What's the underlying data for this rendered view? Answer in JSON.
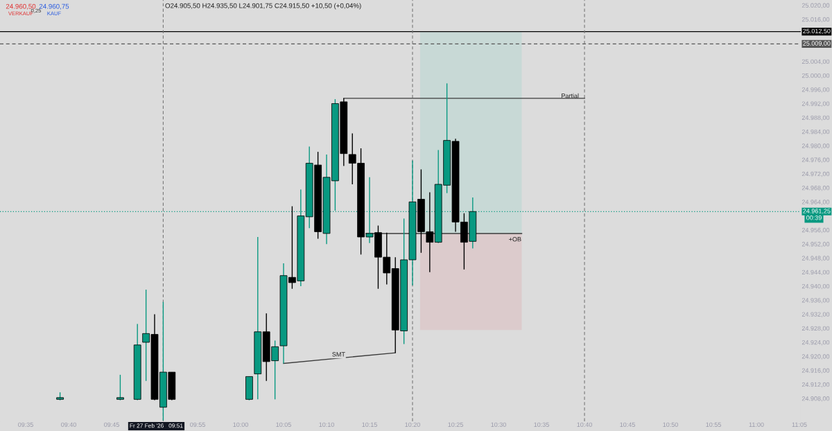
{
  "chart_data": {
    "type": "candlestick",
    "x": [
      9.65,
      9.7667,
      9.8,
      9.8167,
      9.8333,
      9.85,
      9.8667,
      10.0167,
      10.0333,
      10.05,
      10.0667,
      10.0833,
      10.1,
      10.1167,
      10.1333,
      10.15,
      10.1667,
      10.1833,
      10.2,
      10.2167,
      10.2333,
      10.25,
      10.2667,
      10.2833,
      10.3,
      10.3167,
      10.3333,
      10.35,
      10.3667,
      10.3833,
      10.4,
      10.4167,
      10.4333,
      10.45
    ],
    "ohlc": [
      [
        24907.75,
        24909.75,
        24907.5,
        24908.25
      ],
      [
        24907.75,
        24914.75,
        24907.5,
        24908.25
      ],
      [
        24907.75,
        24929.25,
        24907.5,
        24923.25
      ],
      [
        24924.0,
        24939.0,
        24913.0,
        24926.5
      ],
      [
        24926.25,
        24932.0,
        24907.5,
        24907.75
      ],
      [
        24905.5,
        24935.5,
        24901.75,
        24915.5
      ],
      [
        24915.5,
        24915.5,
        24907.5,
        24907.75
      ],
      [
        24907.75,
        24914.25,
        24907.5,
        24914.25
      ],
      [
        24915.0,
        24954.0,
        24907.75,
        24927.0
      ],
      [
        24927.0,
        24932.25,
        24913.0,
        24918.5
      ],
      [
        24918.75,
        24924.5,
        24907.75,
        24922.75
      ],
      [
        24923.0,
        24946.5,
        24918.0,
        24943.0
      ],
      [
        24942.5,
        24962.75,
        24939.25,
        24941.0
      ],
      [
        24941.5,
        24967.5,
        24940.0,
        24960.0
      ],
      [
        24959.75,
        24979.75,
        24956.5,
        24975.0
      ],
      [
        24974.5,
        24978.25,
        24953.5,
        24955.5
      ],
      [
        24955.0,
        24977.5,
        24952.0,
        24971.0
      ],
      [
        24970.0,
        24993.25,
        24961.5,
        24992.0
      ],
      [
        24992.5,
        24993.5,
        24974.25,
        24977.75
      ],
      [
        24977.5,
        24983.5,
        24969.0,
        24975.0
      ],
      [
        24975.0,
        24979.25,
        24949.0,
        24954.0
      ],
      [
        24954.0,
        24971.0,
        24952.25,
        24955.0
      ],
      [
        24955.25,
        24957.25,
        24939.25,
        24948.25
      ],
      [
        24948.25,
        24955.25,
        24940.5,
        24943.75
      ],
      [
        24945.0,
        24948.25,
        24921.0,
        24927.5
      ],
      [
        24927.25,
        24959.25,
        24923.5,
        24947.5
      ],
      [
        24947.5,
        24975.75,
        24940.25,
        24964.0
      ],
      [
        24964.75,
        24973.25,
        24949.5,
        24955.5
      ],
      [
        24955.5,
        24966.75,
        24944.0,
        24952.5
      ],
      [
        24952.5,
        24978.75,
        24952.25,
        24969.0
      ],
      [
        24968.75,
        24997.75,
        24966.5,
        24981.5
      ],
      [
        24981.25,
        24982.0,
        24955.5,
        24958.25
      ],
      [
        24958.25,
        24960.75,
        24944.75,
        24952.5
      ],
      [
        24952.75,
        24965.25,
        24950.75,
        24961.25
      ]
    ],
    "colors": [
      "#089981",
      "#089981",
      "#089981",
      "#089981",
      "#000000",
      "#089981",
      "#000000",
      "#089981",
      "#089981",
      "#000000",
      "#089981",
      "#089981",
      "#000000",
      "#089981",
      "#089981",
      "#000000",
      "#089981",
      "#089981",
      "#000000",
      "#000000",
      "#000000",
      "#089981",
      "#000000",
      "#000000",
      "#000000",
      "#089981",
      "#089981",
      "#000000",
      "#000000",
      "#089981",
      "#089981",
      "#000000",
      "#000000",
      "#089981"
    ],
    "series": [
      {
        "type": "bar",
        "x": [
          10.4465
        ],
        "base": [
          24955.0
        ],
        "values": [
          57.5
        ],
        "color": "#c8d9d6"
      },
      {
        "type": "bar",
        "x": [
          10.4465
        ],
        "base": [
          24955.0
        ],
        "values": [
          -27.5
        ],
        "color": "#dccbcc"
      },
      {
        "type": "line",
        "x": [
          10.2,
          10.667
        ],
        "values": [
          24993.5,
          24993.5
        ],
        "color": "#3a3a3a"
      },
      {
        "type": "line",
        "x": [
          10.243,
          10.545
        ],
        "values": [
          24955.0,
          24955.0
        ],
        "color": "#3a3a3a"
      },
      {
        "type": "line",
        "x": [
          10.0833,
          10.3
        ],
        "values": [
          24918.0,
          24921.0
        ],
        "color": "#3a3a3a"
      }
    ],
    "ref_lines": [
      {
        "axis": "y",
        "value": 25012.5,
        "label": "25.012,50",
        "color": "#000000",
        "line_style": "solid"
      },
      {
        "axis": "y",
        "value": 25009.0,
        "label": "25.009,00",
        "color": "#555555",
        "line_style": "dashed"
      },
      {
        "axis": "y",
        "value": 24961.25,
        "label": "24.961,25",
        "color": "#089981",
        "line_style": "dotted"
      },
      {
        "axis": "x",
        "value": 9.85,
        "label": null,
        "color": "#777777",
        "line_style": "dashed"
      },
      {
        "axis": "x",
        "value": 10.3333,
        "label": null,
        "color": "#777777",
        "line_style": "dashed"
      },
      {
        "axis": "x",
        "value": 10.6667,
        "label": null,
        "color": "#777777",
        "line_style": "dashed"
      }
    ],
    "annotations": [
      "24.960,50",
      "VERKAUF",
      "0,25",
      "24.960,75",
      "KAUF",
      "O24.905,50 H24.935,50 L24.901,75 C24.915,50 +10,50 (+0,04%)",
      "00:39",
      "Partial",
      "+OB",
      "Fr 27 Feb '26   09:51",
      {
        "text": "SMT",
        "x": 10.19,
        "y": 24919.6
      }
    ],
    "xlim": [
      9.5336,
      11.086
    ],
    "xticks": [
      {
        "value": 9.5833,
        "label": "09:35"
      },
      {
        "value": 9.6667,
        "label": "09:40"
      },
      {
        "value": 9.75,
        "label": "09:45"
      },
      {
        "value": 9.9167,
        "label": "09:55"
      },
      {
        "value": 10.0,
        "label": "10:00"
      },
      {
        "value": 10.0833,
        "label": "10:05"
      },
      {
        "value": 10.1667,
        "label": "10:10"
      },
      {
        "value": 10.25,
        "label": "10:15"
      },
      {
        "value": 10.3333,
        "label": "10:20"
      },
      {
        "value": 10.4167,
        "label": "10:25"
      },
      {
        "value": 10.5,
        "label": "10:30"
      },
      {
        "value": 10.5833,
        "label": "10:35"
      },
      {
        "value": 10.6667,
        "label": "10:40"
      },
      {
        "value": 10.75,
        "label": "10:45"
      },
      {
        "value": 10.8333,
        "label": "10:50"
      },
      {
        "value": 10.9167,
        "label": "10:55"
      },
      {
        "value": 11.0,
        "label": "11:00"
      },
      {
        "value": 11.0833,
        "label": "11:05"
      }
    ],
    "ylim": [
      24901.5,
      25021.5
    ],
    "yticks": [
      {
        "value": 24908,
        "label": "24.908,00"
      },
      {
        "value": 24912,
        "label": "24.912,00"
      },
      {
        "value": 24916,
        "label": "24.916,00"
      },
      {
        "value": 24920,
        "label": "24.920,00"
      },
      {
        "value": 24924,
        "label": "24.924,00"
      },
      {
        "value": 24928,
        "label": "24.928,00"
      },
      {
        "value": 24932,
        "label": "24.932,00"
      },
      {
        "value": 24936,
        "label": "24.936,00"
      },
      {
        "value": 24940,
        "label": "24.940,00"
      },
      {
        "value": 24944,
        "label": "24.944,00"
      },
      {
        "value": 24948,
        "label": "24.948,00"
      },
      {
        "value": 24952,
        "label": "24.952,00"
      },
      {
        "value": 24956,
        "label": "24.956,00"
      },
      {
        "value": 24964,
        "label": "24.964,00"
      },
      {
        "value": 24968,
        "label": "24.968,00"
      },
      {
        "value": 24972,
        "label": "24.972,00"
      },
      {
        "value": 24976,
        "label": "24.976,00"
      },
      {
        "value": 24980,
        "label": "24.980,00"
      },
      {
        "value": 24984,
        "label": "24.984,00"
      },
      {
        "value": 24988,
        "label": "24.988,00"
      },
      {
        "value": 24992,
        "label": "24.992,00"
      },
      {
        "value": 24996,
        "label": "24.996,00"
      },
      {
        "value": 25000,
        "label": "25.000,00"
      },
      {
        "value": 25004,
        "label": "25.004,00"
      },
      {
        "value": 25016,
        "label": "25.016,00"
      },
      {
        "value": 25020,
        "label": "25.020,00"
      }
    ]
  }
}
